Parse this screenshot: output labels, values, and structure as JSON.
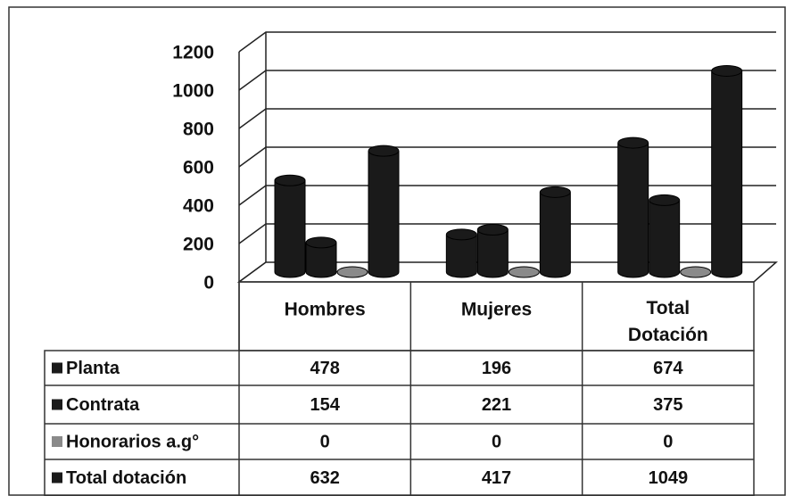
{
  "chart_data": {
    "type": "bar3d",
    "categories": [
      "Hombres",
      "Mujeres",
      "Total Dotación"
    ],
    "series": [
      {
        "name": "Planta",
        "color": "#1a1a1a",
        "values": [
          478,
          196,
          674
        ]
      },
      {
        "name": "Contrata",
        "color": "#1a1a1a",
        "values": [
          154,
          221,
          375
        ]
      },
      {
        "name": "Honorarios a.g°",
        "color": "#8a8a8a",
        "values": [
          0,
          0,
          0
        ]
      },
      {
        "name": "Total dotación",
        "color": "#1a1a1a",
        "values": [
          632,
          417,
          1049
        ]
      }
    ],
    "ylim": [
      0,
      1200
    ],
    "yticks": [
      0,
      200,
      400,
      600,
      800,
      1000,
      1200
    ],
    "grid": true,
    "data_table": true
  }
}
